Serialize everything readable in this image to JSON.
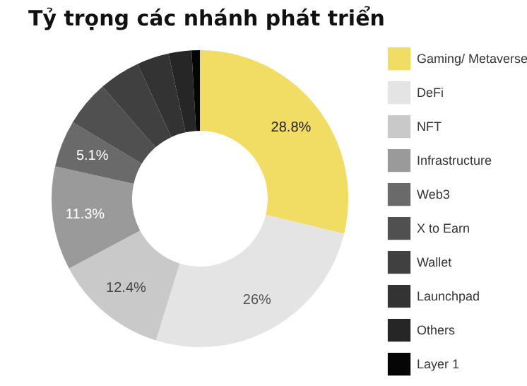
{
  "chart_data": {
    "type": "donut",
    "title": "Tỷ trọng các nhánh phát triển",
    "categories": [
      "Gaming/ Metaverse",
      "DeFi",
      "NFT",
      "Infrastructure",
      "Web3",
      "X to Earn",
      "Wallet",
      "Launchpad",
      "Others",
      "Layer 1"
    ],
    "values": [
      28.8,
      26,
      12.4,
      11.3,
      5.1,
      5,
      4.5,
      3.5,
      2.5,
      0.9
    ],
    "value_labels": [
      "28.8%",
      "26%",
      "12.4%",
      "11.3%",
      "5.1%",
      null,
      null,
      null,
      null,
      null
    ],
    "colors": [
      "#f1dc64",
      "#e4e4e4",
      "#c9c9c9",
      "#9a9a9a",
      "#6a6a6a",
      "#505050",
      "#404040",
      "#333333",
      "#262626",
      "#050505"
    ],
    "legend": "right"
  }
}
